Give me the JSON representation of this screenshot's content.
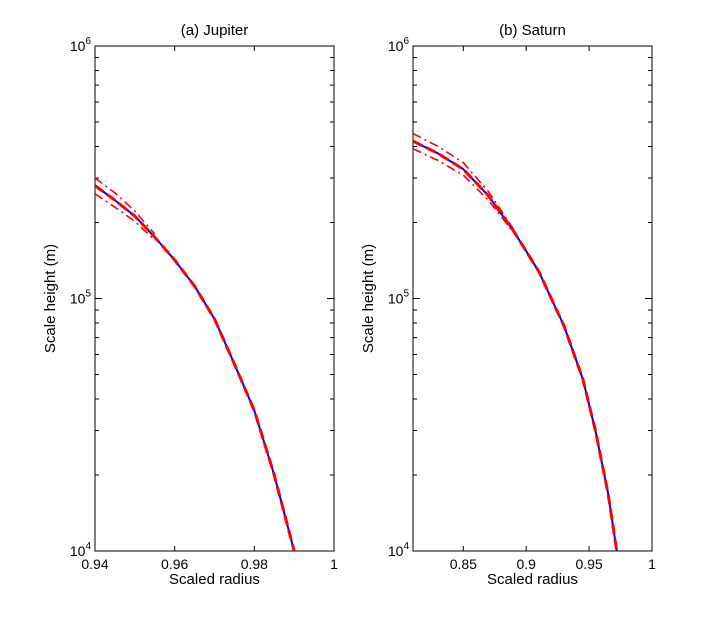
{
  "chart_data": [
    {
      "type": "line",
      "title": "(a) Jupiter",
      "xlabel": "Scaled radius",
      "ylabel": "Scale height (m)",
      "xlim": [
        0.94,
        1.0
      ],
      "ylim": [
        10000,
        1000000
      ],
      "yscale": "log",
      "grid": false,
      "xticks": [
        "0.94",
        "0.96",
        "0.98",
        "1"
      ],
      "xtick_values": [
        0.94,
        0.96,
        0.98,
        1.0
      ],
      "yticks": [
        {
          "base": "10",
          "exp": "4",
          "value": 10000
        },
        {
          "base": "10",
          "exp": "5",
          "value": 100000
        },
        {
          "base": "10",
          "exp": "6",
          "value": 1000000
        }
      ],
      "series": [
        {
          "color": "#0000ff",
          "style": "solid",
          "x": [
            0.94,
            0.945,
            0.95,
            0.955,
            0.96,
            0.965,
            0.97,
            0.975,
            0.98,
            0.985,
            0.99
          ],
          "y": [
            280000,
            245000,
            212000,
            175000,
            142000,
            112000,
            83000,
            55000,
            36000,
            20000,
            10000
          ]
        },
        {
          "color": "#ff0000",
          "style": "dashed",
          "x": [
            0.94,
            0.945,
            0.95,
            0.955,
            0.96,
            0.965,
            0.97,
            0.975,
            0.98,
            0.985,
            0.99
          ],
          "y": [
            280000,
            245000,
            212000,
            175000,
            142000,
            112000,
            83000,
            55000,
            36000,
            20000,
            10000
          ]
        },
        {
          "color": "#ff0000",
          "style": "dashdot",
          "x": [
            0.94,
            0.945,
            0.95,
            0.955
          ],
          "y": [
            300000,
            262000,
            222000,
            180000
          ]
        },
        {
          "color": "#ff0000",
          "style": "dashdot",
          "x": [
            0.94,
            0.945,
            0.95,
            0.955
          ],
          "y": [
            260000,
            230000,
            202000,
            170000
          ]
        }
      ]
    },
    {
      "type": "line",
      "title": "(b) Saturn",
      "xlabel": "Scaled radius",
      "ylabel": "Scale height (m)",
      "xlim": [
        0.81,
        1.0
      ],
      "ylim": [
        10000,
        1000000
      ],
      "yscale": "log",
      "grid": false,
      "xticks": [
        "0.85",
        "0.9",
        "0.95",
        "1"
      ],
      "xtick_values": [
        0.85,
        0.9,
        0.95,
        1.0
      ],
      "yticks": [
        {
          "base": "10",
          "exp": "4",
          "value": 10000
        },
        {
          "base": "10",
          "exp": "5",
          "value": 100000
        },
        {
          "base": "10",
          "exp": "6",
          "value": 1000000
        }
      ],
      "series": [
        {
          "color": "#0000ff",
          "style": "solid",
          "x": [
            0.81,
            0.83,
            0.85,
            0.87,
            0.89,
            0.91,
            0.93,
            0.945,
            0.955,
            0.965,
            0.972
          ],
          "y": [
            420000,
            375000,
            325000,
            255000,
            185000,
            128000,
            78000,
            48000,
            30000,
            17000,
            10000
          ]
        },
        {
          "color": "#ff0000",
          "style": "dashed",
          "x": [
            0.81,
            0.83,
            0.85,
            0.87,
            0.89,
            0.91,
            0.93,
            0.945,
            0.955,
            0.965,
            0.972
          ],
          "y": [
            420000,
            375000,
            325000,
            255000,
            185000,
            128000,
            78000,
            48000,
            30000,
            17000,
            10000
          ]
        },
        {
          "color": "#ff0000",
          "style": "dashdot",
          "x": [
            0.81,
            0.83,
            0.85,
            0.87,
            0.89
          ],
          "y": [
            450000,
            400000,
            345000,
            265000,
            188000
          ]
        },
        {
          "color": "#ff0000",
          "style": "dashdot",
          "x": [
            0.81,
            0.83,
            0.85,
            0.87,
            0.89
          ],
          "y": [
            392000,
            352000,
            308000,
            245000,
            182000
          ]
        }
      ]
    }
  ]
}
